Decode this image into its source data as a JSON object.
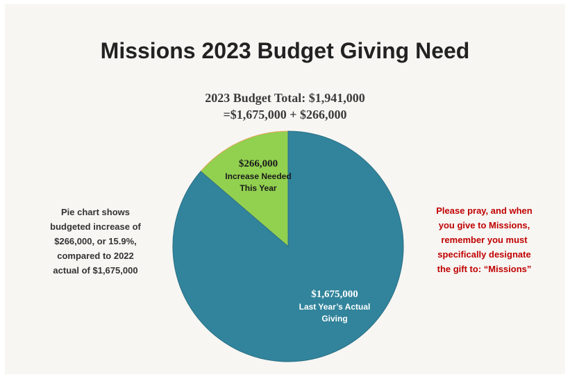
{
  "title": "Missions 2023 Budget Giving Need",
  "subtitle_line1": "2023 Budget Total: $1,941,000",
  "subtitle_line2": "=$1,675,000 + $266,000",
  "left_note": [
    "Pie chart shows",
    "budgeted increase of",
    "$266,000, or 15.9%,",
    "compared to 2022",
    "actual of $1,675,000"
  ],
  "right_note": [
    "Please pray, and when",
    "you give to Missions,",
    "remember you must",
    "specifically designate",
    "the gift to: “Missions”"
  ],
  "colors": {
    "increase_slice": "#92d050",
    "actual_slice": "#31849b",
    "right_note_text": "#c00000",
    "slice_text_dark": "#1a1a1a",
    "slice_text_light": "#ffffff"
  },
  "chart_data": {
    "type": "pie",
    "title": "",
    "start_angle_deg": 0,
    "direction": "counterclockwise",
    "slices": [
      {
        "value_label": "$266,000",
        "label_lines": [
          "Increase Needed",
          "This Year"
        ],
        "value": 266000,
        "color": "#92d050",
        "text_color": "#1a1a1a"
      },
      {
        "value_label": "$1,675,000",
        "label_lines": [
          "Last Year’s Actual",
          "Giving"
        ],
        "value": 1675000,
        "color": "#31849b",
        "text_color": "#ffffff"
      }
    ]
  }
}
